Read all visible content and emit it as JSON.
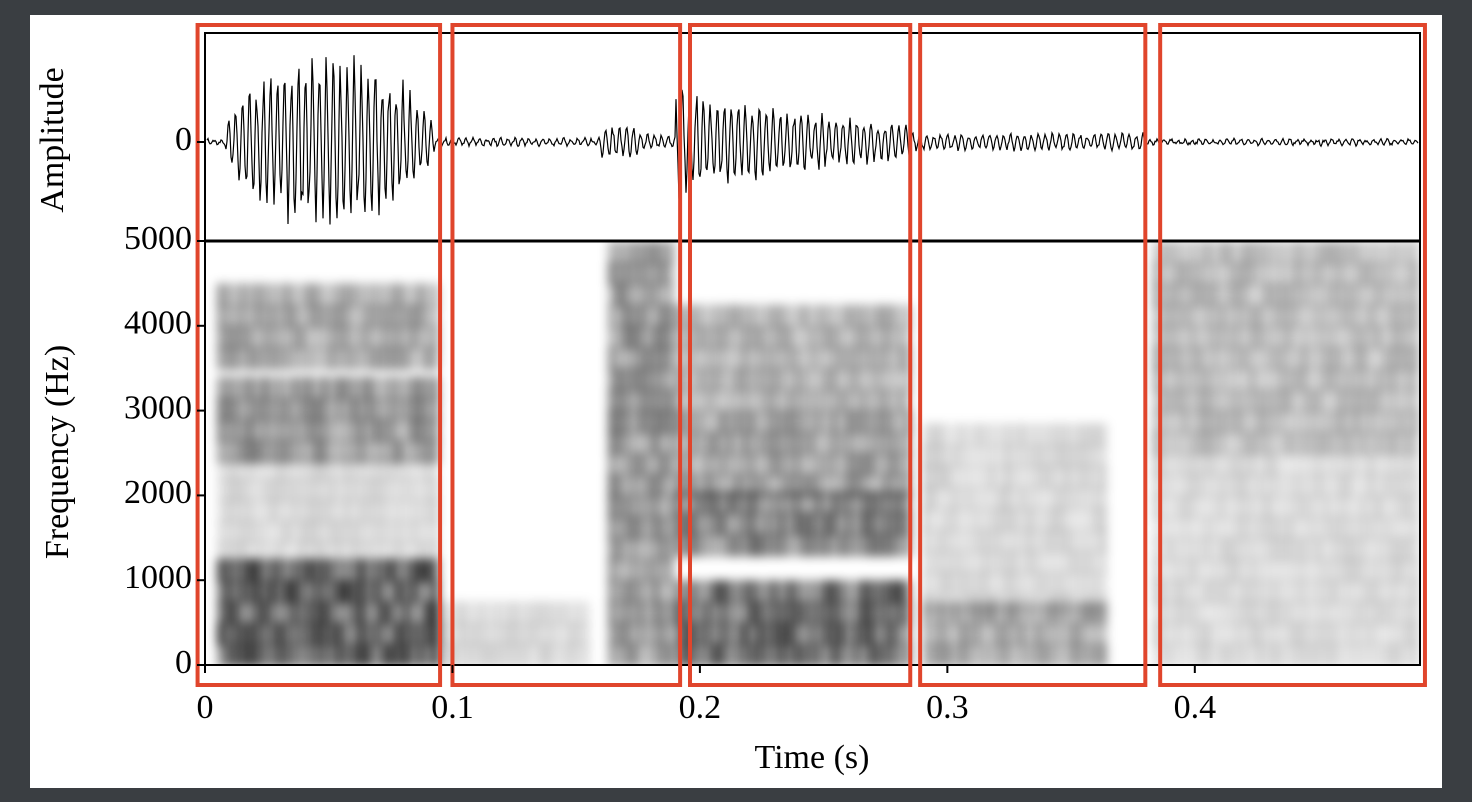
{
  "chart_data": [
    {
      "type": "waveform",
      "ylabel": "Amplitude",
      "yticks": [
        0
      ]
    },
    {
      "type": "spectrogram",
      "ylabel": "Frequency (Hz)",
      "xlabel": "Time (s)",
      "xlim": [
        0,
        0.491
      ],
      "ylim": [
        0,
        5000
      ],
      "xticks": [
        0,
        0.1,
        0.2,
        0.3,
        0.4
      ],
      "yticks": [
        0,
        1000,
        2000,
        3000,
        4000,
        5000
      ],
      "segments": [
        [
          -0.003,
          0.095
        ],
        [
          0.1,
          0.192
        ],
        [
          0.196,
          0.285
        ],
        [
          0.289,
          0.38
        ],
        [
          0.386,
          0.493
        ]
      ],
      "segment_color": "#e0452c"
    }
  ]
}
